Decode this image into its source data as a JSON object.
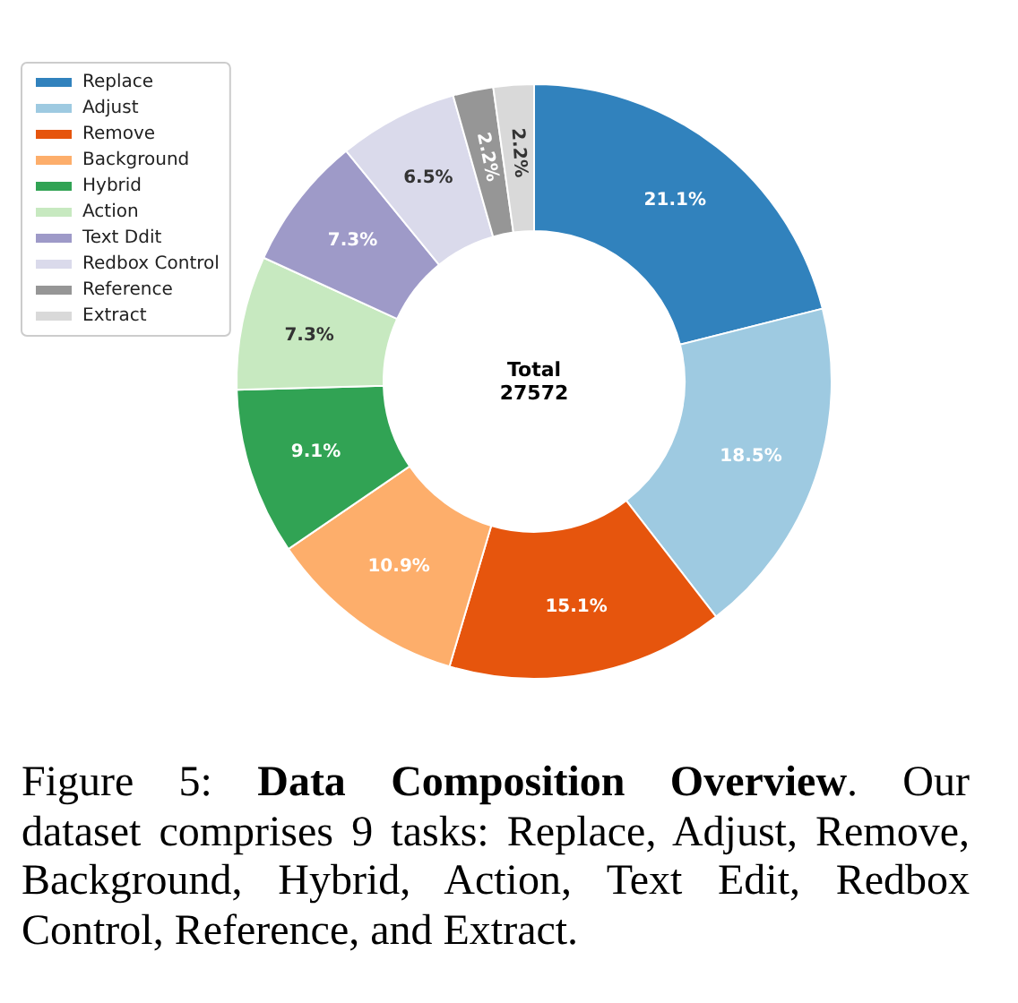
{
  "chart_data": {
    "type": "donut",
    "categories": [
      "Replace",
      "Adjust",
      "Remove",
      "Background",
      "Hybrid",
      "Action",
      "Text Ddit",
      "Redbox Control",
      "Reference",
      "Extract"
    ],
    "values": [
      21.1,
      18.5,
      15.1,
      10.9,
      9.1,
      7.3,
      7.3,
      6.5,
      2.2,
      2.2
    ],
    "colors": [
      "#3182bd",
      "#9ecae1",
      "#e6550d",
      "#fdae6b",
      "#31a354",
      "#c7e9c0",
      "#9e9ac8",
      "#dadaeb",
      "#969696",
      "#d9d9d9"
    ],
    "value_labels": [
      "21.1%",
      "18.5%",
      "15.1%",
      "10.9%",
      "9.1%",
      "7.3%",
      "7.3%",
      "6.5%",
      "2.2%",
      "2.2%"
    ],
    "legend": "top left",
    "annotations": [
      "Total\n27572",
      "Figure 5:",
      "Data Composition Overview",
      ". Our",
      "dataset comprises 9 tasks: Replace, Adjust, Remove, Background, Hybrid, Action, Text Edit, Redbox Control, Reference, and Extract."
    ]
  }
}
